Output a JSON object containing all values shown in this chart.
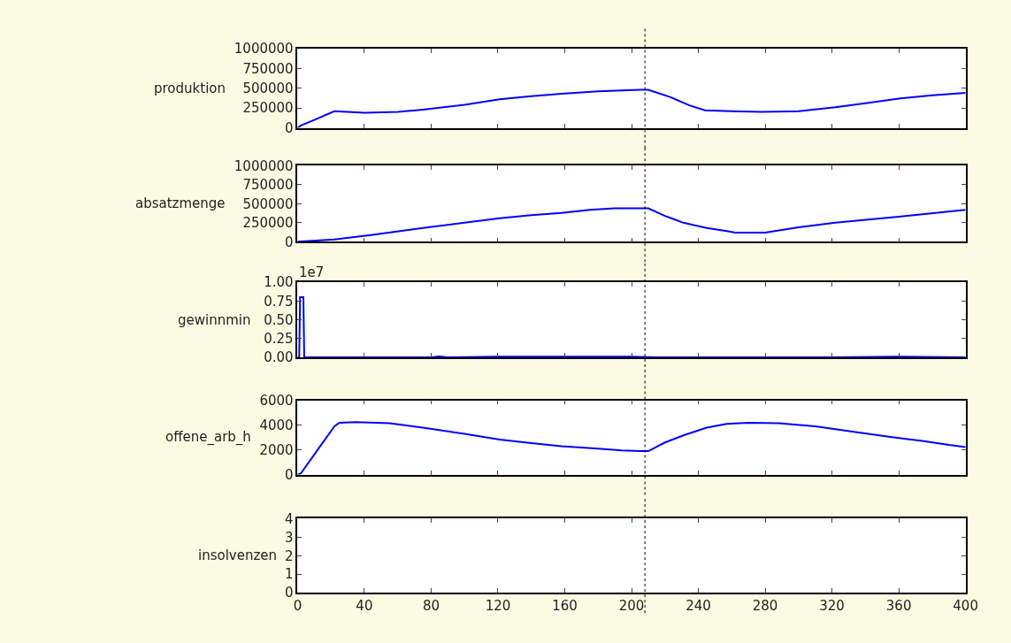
{
  "chart_data": [
    {
      "type": "line",
      "ylabel": "produktion",
      "xlim": [
        0,
        400
      ],
      "xticks": [
        0,
        40,
        80,
        120,
        160,
        200,
        240,
        280,
        320,
        360,
        400
      ],
      "ylim": [
        0,
        1000000
      ],
      "yticks": [
        0,
        250000,
        500000,
        750000,
        1000000
      ],
      "tick_labels": "y",
      "ref_lines": [
        {
          "axis": "x",
          "value": 208,
          "color": "#000000",
          "line_style": "dotted"
        }
      ],
      "series": [
        {
          "color": "#0000ff",
          "x": [
            0,
            2,
            10,
            22,
            30,
            40,
            60,
            75,
            100,
            121,
            140,
            158,
            180,
            205,
            210,
            223,
            235,
            244,
            260,
            278,
            300,
            322,
            340,
            361,
            380,
            400
          ],
          "values": [
            0,
            30000,
            100000,
            210000,
            200000,
            190000,
            200000,
            230000,
            290000,
            360000,
            400000,
            430000,
            460000,
            480000,
            480000,
            390000,
            280000,
            220000,
            210000,
            200000,
            210000,
            260000,
            310000,
            370000,
            410000,
            440000
          ]
        }
      ]
    },
    {
      "type": "line",
      "ylabel": "absatzmenge",
      "xlim": [
        0,
        400
      ],
      "xticks": [
        0,
        40,
        80,
        120,
        160,
        200,
        240,
        280,
        320,
        360,
        400
      ],
      "ylim": [
        0,
        1000000
      ],
      "yticks": [
        0,
        250000,
        500000,
        750000,
        1000000
      ],
      "tick_labels": "y",
      "ref_lines": [
        {
          "axis": "x",
          "value": 208,
          "color": "#000000",
          "line_style": "dotted"
        }
      ],
      "series": [
        {
          "color": "#0000ff",
          "x": [
            0,
            22,
            45,
            75,
            100,
            121,
            140,
            158,
            175,
            190,
            210,
            220,
            231,
            245,
            257,
            262,
            280,
            300,
            322,
            360,
            400
          ],
          "values": [
            0,
            30000,
            90000,
            180000,
            250000,
            310000,
            350000,
            380000,
            420000,
            440000,
            440000,
            340000,
            250000,
            180000,
            140000,
            120000,
            120000,
            190000,
            250000,
            330000,
            420000
          ]
        }
      ]
    },
    {
      "type": "line",
      "ylabel": "gewinnmin",
      "xlim": [
        0,
        400
      ],
      "xticks": [
        0,
        40,
        80,
        120,
        160,
        200,
        240,
        280,
        320,
        360,
        400
      ],
      "ylim": [
        0,
        1
      ],
      "yticks": [
        {
          "value": 0,
          "label": "0.00"
        },
        0.25,
        {
          "value": 0.5,
          "label": "0.50"
        },
        0.75,
        {
          "value": 1,
          "label": "1.00"
        }
      ],
      "tick_labels": "y",
      "annotations": [
        "1e7"
      ],
      "ref_lines": [
        {
          "axis": "x",
          "value": 208,
          "color": "#000000",
          "line_style": "dotted"
        }
      ],
      "series": [
        {
          "color": "#0000ff",
          "x": [
            0,
            1,
            1.5,
            3.5,
            4,
            80,
            85,
            90,
            120,
            160,
            200,
            215,
            320,
            360,
            400
          ],
          "values": [
            0,
            0,
            0.8,
            0.8,
            0,
            0,
            0.01,
            0,
            0.01,
            0.01,
            0.01,
            0,
            0,
            0.01,
            0
          ]
        }
      ]
    },
    {
      "type": "line",
      "ylabel": "offene_arb_h",
      "xlim": [
        0,
        400
      ],
      "xticks": [
        0,
        40,
        80,
        120,
        160,
        200,
        240,
        280,
        320,
        360,
        400
      ],
      "ylim": [
        0,
        6000
      ],
      "yticks": [
        0,
        2000,
        4000,
        6000
      ],
      "tick_labels": "y",
      "ref_lines": [
        {
          "axis": "x",
          "value": 208,
          "color": "#000000",
          "line_style": "dotted"
        }
      ],
      "series": [
        {
          "color": "#0000ff",
          "x": [
            0,
            2,
            12,
            22,
            25,
            35,
            55,
            75,
            100,
            121,
            140,
            158,
            180,
            194,
            205,
            210,
            220,
            231,
            245,
            257,
            270,
            288,
            310,
            335,
            355,
            374,
            390,
            400
          ],
          "values": [
            0,
            100,
            2000,
            3900,
            4200,
            4250,
            4150,
            3800,
            3300,
            2830,
            2550,
            2300,
            2100,
            1950,
            1900,
            1900,
            2600,
            3170,
            3800,
            4100,
            4200,
            4150,
            3900,
            3430,
            3050,
            2730,
            2400,
            2230
          ]
        }
      ]
    },
    {
      "type": "line",
      "ylabel": "insolvenzen",
      "xlim": [
        0,
        400
      ],
      "xticks": [
        0,
        40,
        80,
        120,
        160,
        200,
        240,
        280,
        320,
        360,
        400
      ],
      "ylim": [
        0,
        4
      ],
      "yticks": [
        0,
        1,
        2,
        3,
        4
      ],
      "ref_lines": [
        {
          "axis": "x",
          "value": 208,
          "color": "#000000",
          "line_style": "dotted"
        }
      ]
    }
  ]
}
